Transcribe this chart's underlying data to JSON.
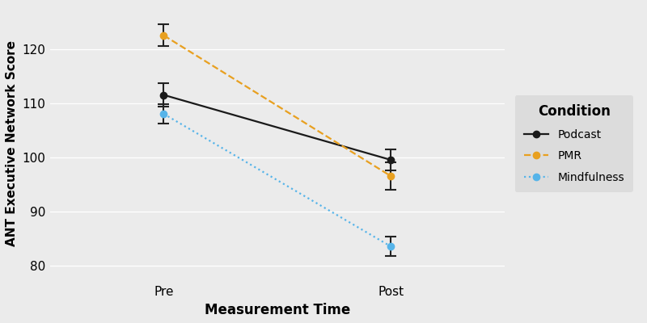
{
  "title": "",
  "xlabel": "Measurement Time",
  "ylabel": "ANT Executive Network Score",
  "x_labels": [
    "Pre",
    "Post"
  ],
  "x_positions": [
    1,
    2
  ],
  "conditions": [
    {
      "name": "Podcast",
      "color": "#1a1a1a",
      "linestyle": "solid",
      "marker": "o",
      "pre_mean": 111.5,
      "post_mean": 99.5,
      "pre_se": 2.2,
      "post_se": 2.0
    },
    {
      "name": "PMR",
      "color": "#E8A020",
      "linestyle": "dashed",
      "marker": "o",
      "pre_mean": 122.5,
      "post_mean": 96.5,
      "pre_se": 2.0,
      "post_se": 2.5
    },
    {
      "name": "Mindfulness",
      "color": "#56B4E9",
      "linestyle": "dotted",
      "marker": "o",
      "pre_mean": 108.0,
      "post_mean": 83.5,
      "pre_se": 1.8,
      "post_se": 1.8
    }
  ],
  "ylim": [
    77,
    128
  ],
  "yticks": [
    80,
    90,
    100,
    110,
    120
  ],
  "plot_bg_color": "#EBEBEB",
  "outer_bg_color": "#EBEBEB",
  "legend_title": "Condition",
  "legend_bg": "#DCDCDC",
  "xlabel_fontsize": 12,
  "ylabel_fontsize": 11,
  "tick_fontsize": 11,
  "legend_fontsize": 10,
  "legend_title_fontsize": 11
}
